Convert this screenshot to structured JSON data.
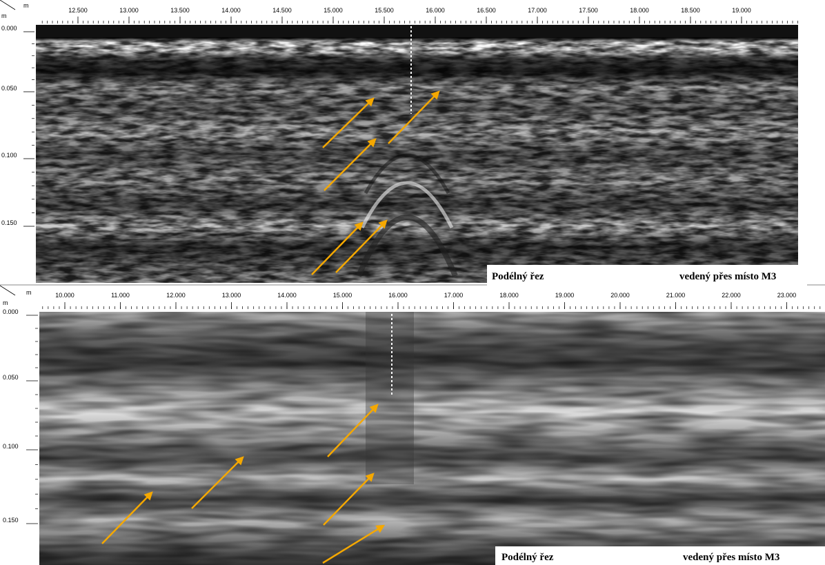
{
  "panels": [
    {
      "corner_x_unit": "m",
      "corner_y_unit": "m",
      "x_ticks": [
        "12.500",
        "13.000",
        "13.500",
        "14.000",
        "14.500",
        "15.000",
        "15.500",
        "16.000",
        "16.500",
        "17.000",
        "17.500",
        "18.000",
        "18.500",
        "19.000"
      ],
      "y_ticks": [
        "0.000",
        "0.050",
        "0.100",
        "0.150"
      ],
      "caption_left": "Podélný řez",
      "caption_right": "vedený přes místo M3"
    },
    {
      "corner_x_unit": "m",
      "corner_y_unit": "m",
      "x_ticks": [
        "10.000",
        "11.000",
        "12.000",
        "13.000",
        "14.000",
        "15.000",
        "16.000",
        "17.000",
        "18.000",
        "19.000",
        "20.000",
        "21.000",
        "22.000",
        "23.000"
      ],
      "y_ticks": [
        "0.000",
        "0.050",
        "0.100",
        "0.150"
      ],
      "caption_left": "Podélný řez",
      "caption_right": "vedený přes místo M3"
    }
  ]
}
